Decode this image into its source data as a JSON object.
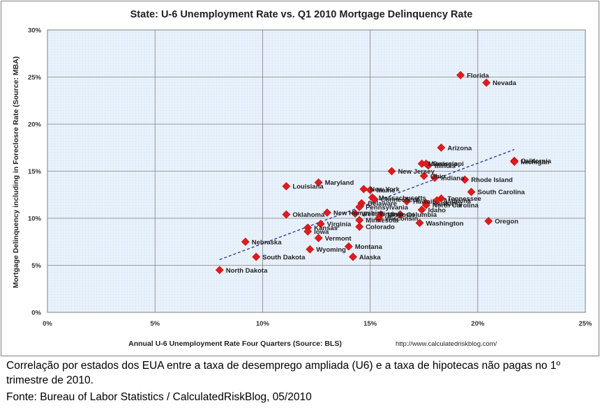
{
  "chart_data": {
    "type": "scatter",
    "title": "State: U-6 Unemployment Rate vs. Q1 2010 Mortgage Delinquency Rate",
    "xlabel": "Annual U-6 Unemployment Rate Four Quarters (Source: BLS)",
    "ylabel": "Mortgage Delinquency including in Foreclosre Rate (Source: MBA)",
    "xlim": [
      0,
      25
    ],
    "ylim": [
      0,
      30
    ],
    "x_ticks": [
      0,
      5,
      10,
      15,
      20,
      25
    ],
    "x_tick_labels": [
      "0%",
      "5%",
      "10%",
      "15%",
      "20%",
      "25%"
    ],
    "y_ticks": [
      0,
      5,
      10,
      15,
      20,
      25,
      30
    ],
    "y_tick_labels": [
      "0%",
      "5%",
      "10%",
      "15%",
      "20%",
      "25%",
      "30%"
    ],
    "grid": true,
    "legend": "none",
    "watermark_url": "http://www.calculatedriskblog.com/",
    "marker_color": "#e31a1c",
    "trendline": {
      "x": [
        8.0,
        21.7
      ],
      "y": [
        5.6,
        17.3
      ],
      "style": "dashed",
      "color": "#1f2f9f"
    },
    "points": [
      {
        "label": "Florida",
        "x": 19.2,
        "y": 25.2
      },
      {
        "label": "Nevada",
        "x": 20.4,
        "y": 24.4
      },
      {
        "label": "Arizona",
        "x": 18.3,
        "y": 17.5
      },
      {
        "label": "California",
        "x": 21.7,
        "y": 16.1
      },
      {
        "label": "Michigan",
        "x": 21.7,
        "y": 16.0
      },
      {
        "label": "Mississippi",
        "x": 17.4,
        "y": 15.8
      },
      {
        "label": "Illinois",
        "x": 17.7,
        "y": 15.6
      },
      {
        "label": "Georgia",
        "x": 17.6,
        "y": 15.8
      },
      {
        "label": "New Jersey",
        "x": 16.0,
        "y": 15.0
      },
      {
        "label": "Ohio",
        "x": 17.5,
        "y": 14.5
      },
      {
        "label": "Indiana",
        "x": 18.0,
        "y": 14.3
      },
      {
        "label": "Rhode Island",
        "x": 19.4,
        "y": 14.1
      },
      {
        "label": "Louisiana",
        "x": 11.1,
        "y": 13.4
      },
      {
        "label": "Maryland",
        "x": 12.6,
        "y": 13.8
      },
      {
        "label": "New York",
        "x": 14.7,
        "y": 13.1
      },
      {
        "label": "Maine",
        "x": 15.0,
        "y": 13.0
      },
      {
        "label": "South Carolina",
        "x": 19.7,
        "y": 12.8
      },
      {
        "label": "Massachusetts",
        "x": 15.1,
        "y": 12.2
      },
      {
        "label": "Connecticut",
        "x": 15.2,
        "y": 12.0
      },
      {
        "label": "Tennessee",
        "x": 18.3,
        "y": 12.1
      },
      {
        "label": "Alabama",
        "x": 18.1,
        "y": 11.9
      },
      {
        "label": "Hawaii",
        "x": 16.7,
        "y": 11.8
      },
      {
        "label": "Kentucky",
        "x": 17.6,
        "y": 11.6
      },
      {
        "label": "North Carolina",
        "x": 17.6,
        "y": 11.4
      },
      {
        "label": "Delaware",
        "x": 14.6,
        "y": 11.6
      },
      {
        "label": "Pennsylvania",
        "x": 14.5,
        "y": 11.2
      },
      {
        "label": "Idaho",
        "x": 17.4,
        "y": 10.9
      },
      {
        "label": "Oklahoma",
        "x": 11.1,
        "y": 10.4
      },
      {
        "label": "New Hampshire",
        "x": 13.0,
        "y": 10.6
      },
      {
        "label": "West Virginia",
        "x": 14.3,
        "y": 10.5
      },
      {
        "label": "Missouri",
        "x": 15.5,
        "y": 10.4
      },
      {
        "label": "Columbia",
        "x": 16.4,
        "y": 10.4
      },
      {
        "label": "Wisconsin",
        "x": 15.4,
        "y": 10.0
      },
      {
        "label": "Minnesota",
        "x": 14.5,
        "y": 9.8
      },
      {
        "label": "Virginia",
        "x": 12.7,
        "y": 9.4
      },
      {
        "label": "Washington",
        "x": 17.3,
        "y": 9.5
      },
      {
        "label": "Oregon",
        "x": 20.5,
        "y": 9.7
      },
      {
        "label": "Kansas",
        "x": 12.1,
        "y": 9.0
      },
      {
        "label": "Iowa",
        "x": 12.1,
        "y": 8.6
      },
      {
        "label": "Colorado",
        "x": 14.5,
        "y": 9.1
      },
      {
        "label": "Vermont",
        "x": 12.6,
        "y": 7.9
      },
      {
        "label": "Nebraska",
        "x": 9.2,
        "y": 7.5
      },
      {
        "label": "Wyoming",
        "x": 12.2,
        "y": 6.7
      },
      {
        "label": "Montana",
        "x": 14.0,
        "y": 7.0
      },
      {
        "label": "South Dakota",
        "x": 9.7,
        "y": 5.9
      },
      {
        "label": "Alaska",
        "x": 14.2,
        "y": 5.9
      },
      {
        "label": "North Dakota",
        "x": 8.0,
        "y": 4.5
      }
    ]
  },
  "caption": {
    "line1": "Correlação por estados dos EUA entre a taxa de desemprego ampliada (U6) e a taxa  de hipotecas não  pagas no 1º trimestre   de 2010.",
    "source": "Fonte: Bureau of Labor Statistics / CalculatedRiskBlog, 05/2010"
  }
}
